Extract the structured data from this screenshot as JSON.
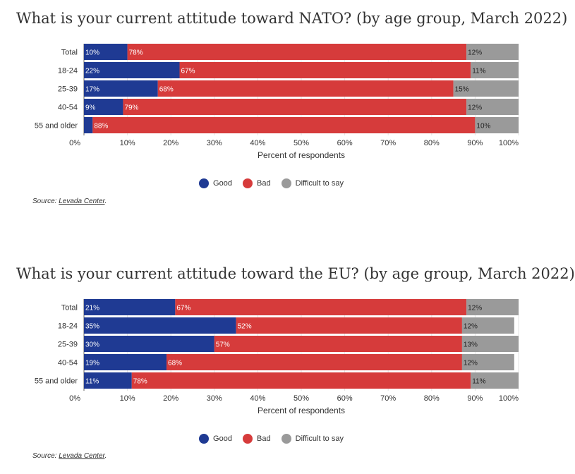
{
  "colors": {
    "good": "#1f3a93",
    "bad": "#d63b3b",
    "difficult": "#9a9a9a"
  },
  "legend": {
    "good": "Good",
    "bad": "Bad",
    "difficult": "Difficult to say"
  },
  "source": {
    "prefix": "Source: ",
    "link": "Levada Center",
    "suffix": "."
  },
  "chart_data": [
    {
      "type": "bar",
      "stacked": true,
      "orientation": "horizontal",
      "title": "What is your current attitude toward NATO? (by age group, March 2022)",
      "xlabel": "Percent of respondents",
      "xlim": [
        0,
        100
      ],
      "x_ticks": [
        "0%",
        "10%",
        "20%",
        "30%",
        "40%",
        "50%",
        "60%",
        "70%",
        "80%",
        "90%",
        "100%"
      ],
      "categories": [
        "Total",
        "18-24",
        "25-39",
        "40-54",
        "55 and older"
      ],
      "series": [
        {
          "name": "Good",
          "values": [
            10,
            22,
            17,
            9,
            2
          ],
          "labels": [
            "10%",
            "22%",
            "17%",
            "9%",
            ""
          ]
        },
        {
          "name": "Bad",
          "values": [
            78,
            67,
            68,
            79,
            88
          ],
          "labels": [
            "78%",
            "67%",
            "68%",
            "79%",
            "88%"
          ]
        },
        {
          "name": "Difficult to say",
          "values": [
            12,
            11,
            15,
            12,
            10
          ],
          "labels": [
            "12%",
            "11%",
            "15%",
            "12%",
            "10%"
          ]
        }
      ],
      "legend_position": "bottom",
      "grid": true
    },
    {
      "type": "bar",
      "stacked": true,
      "orientation": "horizontal",
      "title": "What is your current attitude toward the EU? (by age group, March 2022)",
      "xlabel": "Percent of respondents",
      "xlim": [
        0,
        100
      ],
      "x_ticks": [
        "0%",
        "10%",
        "20%",
        "30%",
        "40%",
        "50%",
        "60%",
        "70%",
        "80%",
        "90%",
        "100%"
      ],
      "categories": [
        "Total",
        "18-24",
        "25-39",
        "40-54",
        "55 and older"
      ],
      "series": [
        {
          "name": "Good",
          "values": [
            21,
            35,
            30,
            19,
            11
          ],
          "labels": [
            "21%",
            "35%",
            "30%",
            "19%",
            "11%"
          ]
        },
        {
          "name": "Bad",
          "values": [
            67,
            52,
            57,
            68,
            78
          ],
          "labels": [
            "67%",
            "52%",
            "57%",
            "68%",
            "78%"
          ]
        },
        {
          "name": "Difficult to say",
          "values": [
            12,
            12,
            13,
            12,
            11
          ],
          "labels": [
            "12%",
            "12%",
            "13%",
            "12%",
            "11%"
          ]
        }
      ],
      "legend_position": "bottom",
      "grid": true
    }
  ]
}
